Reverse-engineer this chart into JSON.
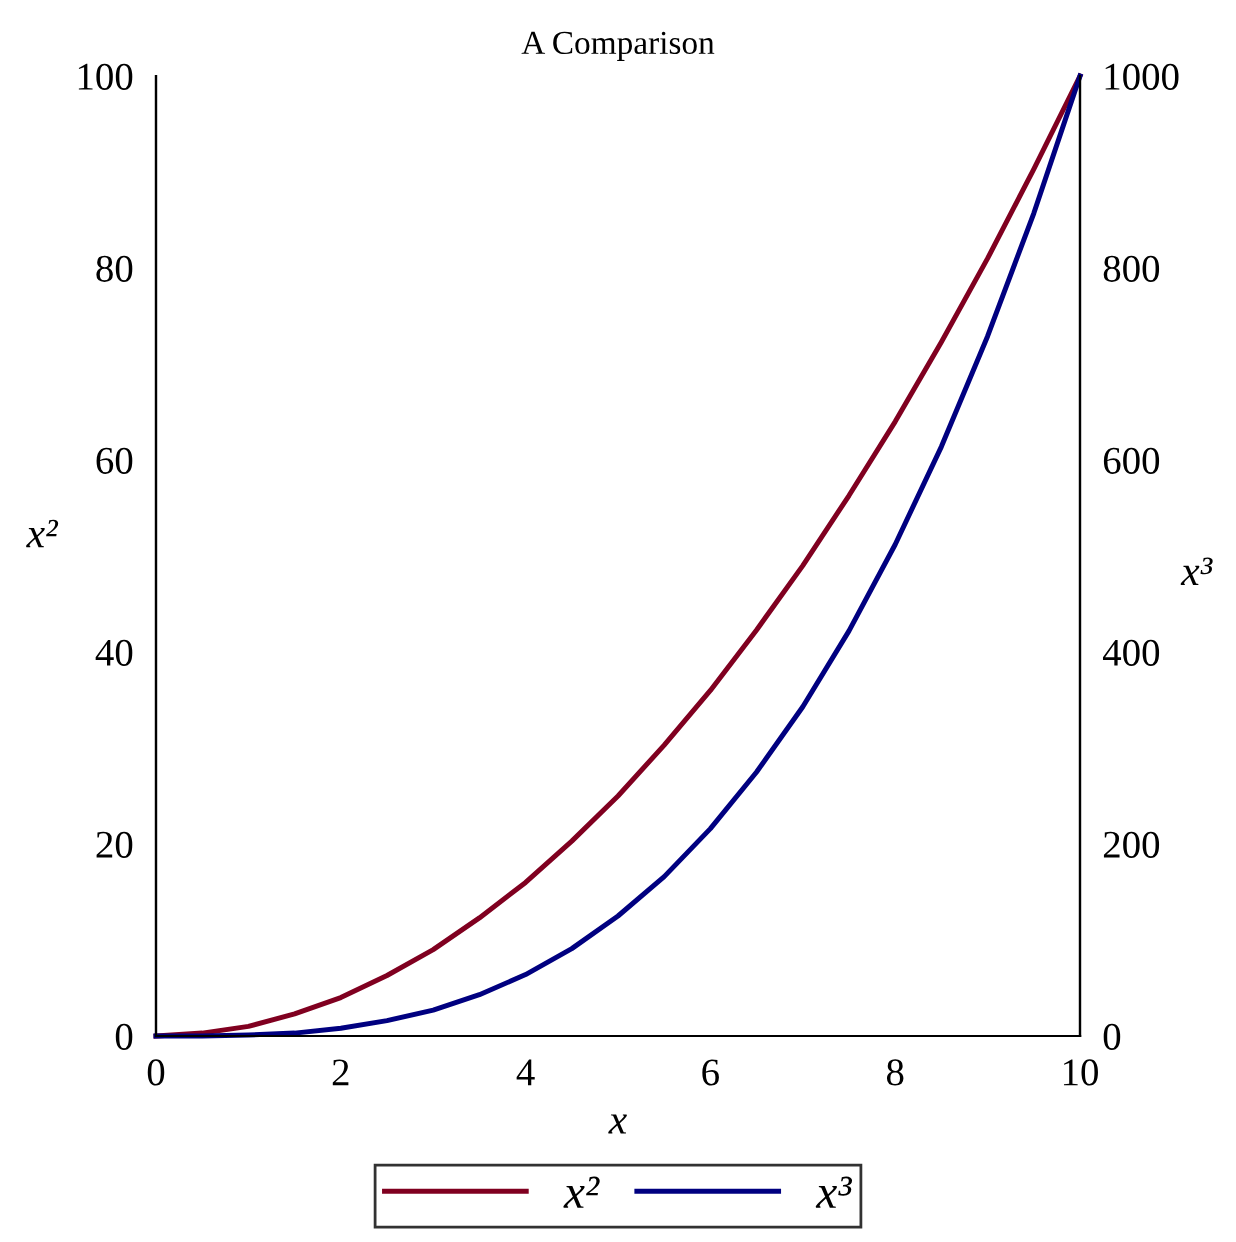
{
  "chart_data": {
    "type": "line",
    "title": "A Comparison",
    "xlabel": "x",
    "ylabel": "x²",
    "y2label": "x³",
    "x": [
      0,
      0.5,
      1,
      1.5,
      2,
      2.5,
      3,
      3.5,
      4,
      4.5,
      5,
      5.5,
      6,
      6.5,
      7,
      7.5,
      8,
      8.5,
      9,
      9.5,
      10
    ],
    "series": [
      {
        "name": "x²",
        "color": "#800020",
        "values": [
          0,
          0.3,
          1,
          2.3,
          4,
          6.3,
          9,
          12.3,
          16,
          20.3,
          25,
          30.3,
          36,
          42.3,
          49,
          56.3,
          64,
          72.3,
          81,
          90.3,
          100
        ]
      },
      {
        "name": "x³",
        "color": "#000080",
        "axis": "y2",
        "values": [
          0,
          0,
          1,
          3,
          8,
          16,
          27,
          43,
          64,
          91,
          125,
          166,
          216,
          275,
          343,
          422,
          512,
          614,
          729,
          857,
          1000
        ]
      }
    ],
    "xlim": [
      0,
      10
    ],
    "xticks": [
      0,
      2,
      4,
      6,
      8,
      10
    ],
    "ylim": [
      0,
      100
    ],
    "yticks": [
      0,
      20,
      40,
      60,
      80,
      100
    ],
    "y2lim": [
      0,
      1000
    ],
    "y2ticks": [
      0,
      200,
      400,
      600,
      800,
      1000
    ],
    "legend": "bottom",
    "grid": false,
    "marker": "none",
    "line_style": "solid"
  }
}
